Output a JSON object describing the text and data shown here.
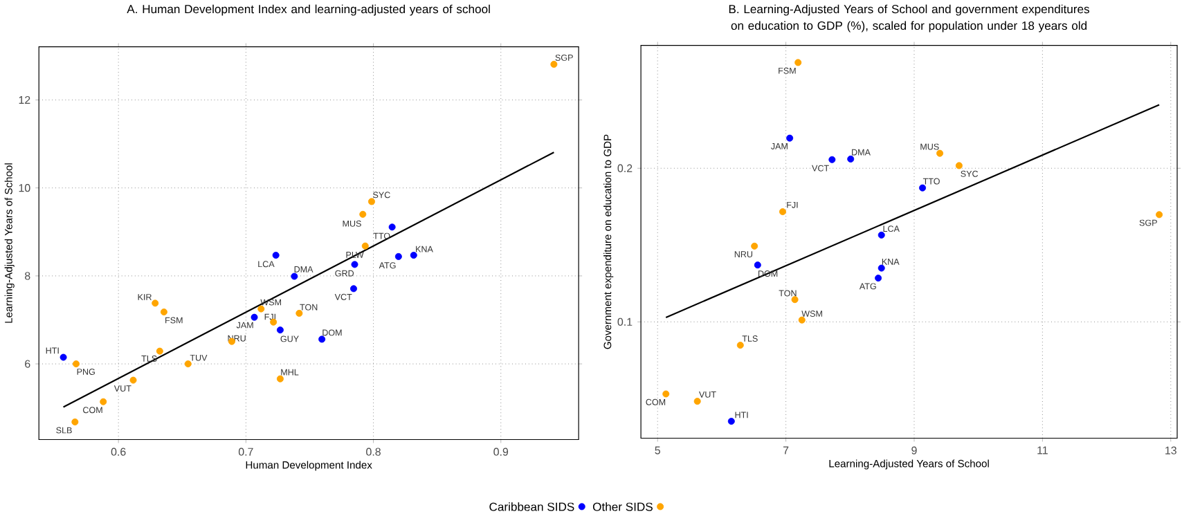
{
  "chart_data": [
    {
      "type": "scatter",
      "title": "A.    Human Development Index and learning-adjusted years of school",
      "xlabel": "Human Development Index",
      "ylabel": "Learning-Adjusted Years of School",
      "xlim": [
        0.5376,
        0.961
      ],
      "ylim": [
        4.28,
        13.21
      ],
      "xticks": [
        0.6,
        0.7,
        0.8,
        0.9
      ],
      "yticks": [
        6,
        8,
        10,
        12
      ],
      "grid": true,
      "legend": "bottom",
      "marker": "circle",
      "series": [
        {
          "name": "Caribbean SIDS",
          "color": "#0000ff",
          "x": [
            0.8147,
            0.7235,
            0.7853,
            0.8197,
            0.8316,
            0.738,
            0.7845,
            0.7066,
            0.7269,
            0.7596,
            0.5568
          ],
          "values": [
            9.11,
            8.47,
            8.26,
            8.44,
            8.47,
            7.99,
            7.71,
            7.06,
            6.77,
            6.56,
            6.15
          ]
        },
        {
          "name": "Other SIDS",
          "color": "#ffa500",
          "x": [
            0.9416,
            0.7986,
            0.7917,
            0.7936,
            0.6288,
            0.6357,
            0.7119,
            0.7418,
            0.7216,
            0.6889,
            0.5668,
            0.6324,
            0.6546,
            0.7269,
            0.6116,
            0.5881,
            0.5659
          ],
          "values": [
            12.81,
            9.69,
            9.4,
            8.68,
            7.38,
            7.18,
            7.25,
            7.15,
            6.95,
            6.51,
            6.0,
            6.29,
            6.0,
            5.66,
            5.63,
            5.14,
            4.68
          ]
        },
        {
          "type": "line",
          "color": "#000000",
          "marker": "none",
          "x": [
            0.5568,
            0.9416
          ],
          "values": [
            5.02,
            10.81
          ]
        }
      ],
      "annotations": [
        {
          "text": "TTO",
          "x": 0.8147,
          "y": 9.11
        },
        {
          "text": "LCA",
          "x": 0.7235,
          "y": 8.47
        },
        {
          "text": "GRD",
          "x": 0.7853,
          "y": 8.26
        },
        {
          "text": "ATG",
          "x": 0.8197,
          "y": 8.44
        },
        {
          "text": "KNA",
          "x": 0.8316,
          "y": 8.47
        },
        {
          "text": "DMA",
          "x": 0.738,
          "y": 7.99
        },
        {
          "text": "VCT",
          "x": 0.7845,
          "y": 7.71
        },
        {
          "text": "JAM",
          "x": 0.7066,
          "y": 7.06
        },
        {
          "text": "GUY",
          "x": 0.7269,
          "y": 6.77
        },
        {
          "text": "DOM",
          "x": 0.7596,
          "y": 6.56
        },
        {
          "text": "HTI",
          "x": 0.5568,
          "y": 6.15
        },
        {
          "text": "SGP",
          "x": 0.9416,
          "y": 12.81
        },
        {
          "text": "SYC",
          "x": 0.7986,
          "y": 9.69
        },
        {
          "text": "MUS",
          "x": 0.7917,
          "y": 9.4
        },
        {
          "text": "PLW",
          "x": 0.7936,
          "y": 8.68
        },
        {
          "text": "KIR",
          "x": 0.6288,
          "y": 7.38
        },
        {
          "text": "FSM",
          "x": 0.6357,
          "y": 7.18
        },
        {
          "text": "WSM",
          "x": 0.7119,
          "y": 7.25
        },
        {
          "text": "TON",
          "x": 0.7418,
          "y": 7.15
        },
        {
          "text": "FJI",
          "x": 0.7216,
          "y": 6.95
        },
        {
          "text": "NRU",
          "x": 0.6889,
          "y": 6.51
        },
        {
          "text": "PNG",
          "x": 0.5668,
          "y": 6.0
        },
        {
          "text": "TLS",
          "x": 0.6324,
          "y": 6.29
        },
        {
          "text": "TUV",
          "x": 0.6546,
          "y": 6.0
        },
        {
          "text": "MHL",
          "x": 0.7269,
          "y": 5.66
        },
        {
          "text": "VUT",
          "x": 0.6116,
          "y": 5.63
        },
        {
          "text": "COM",
          "x": 0.5881,
          "y": 5.14
        },
        {
          "text": "SLB",
          "x": 0.5659,
          "y": 4.68
        }
      ]
    },
    {
      "type": "scatter",
      "title": "B.    Learning-Adjusted Years of School and government expenditures on education to GDP (%), scaled for population under 18 years old",
      "xlabel": "Learning-Adjusted Years of School",
      "ylabel": "Government expenditure on education to GDP",
      "xlim": [
        4.74,
        13.1
      ],
      "ylim": [
        0.0243,
        0.28
      ],
      "xticks": [
        5,
        7,
        9,
        11,
        13
      ],
      "yticks": [
        0.1,
        0.2
      ],
      "grid": true,
      "marker": "circle",
      "series": [
        {
          "color": "#0000ff",
          "x": [
            7.06,
            7.72,
            8.01,
            9.13,
            8.49,
            6.56,
            8.49,
            8.44,
            6.15
          ],
          "values": [
            0.2196,
            0.2056,
            0.206,
            0.1872,
            0.1565,
            0.137,
            0.135,
            0.1285,
            0.0353
          ]
        },
        {
          "color": "#ffa500",
          "x": [
            7.19,
            9.4,
            9.7,
            6.95,
            12.82,
            6.51,
            7.14,
            7.25,
            6.29,
            5.13,
            5.62
          ],
          "values": [
            0.2688,
            0.2097,
            0.2017,
            0.1717,
            0.1698,
            0.1493,
            0.1145,
            0.1012,
            0.0848,
            0.0531,
            0.0483
          ]
        },
        {
          "type": "line",
          "color": "#000000",
          "marker": "none",
          "x": [
            5.13,
            12.82
          ],
          "values": [
            0.1029,
            0.2413
          ]
        }
      ],
      "annotations": [
        {
          "text": "JAM",
          "x": 7.06,
          "y": 0.2196
        },
        {
          "text": "VCT",
          "x": 7.72,
          "y": 0.2056
        },
        {
          "text": "DMA",
          "x": 8.01,
          "y": 0.206
        },
        {
          "text": "TTO",
          "x": 9.13,
          "y": 0.1872
        },
        {
          "text": "LCA",
          "x": 8.49,
          "y": 0.1565
        },
        {
          "text": "DOM",
          "x": 6.56,
          "y": 0.137
        },
        {
          "text": "KNA",
          "x": 8.49,
          "y": 0.135
        },
        {
          "text": "ATG",
          "x": 8.44,
          "y": 0.1285
        },
        {
          "text": "HTI",
          "x": 6.15,
          "y": 0.0353
        },
        {
          "text": "FSM",
          "x": 7.19,
          "y": 0.2688
        },
        {
          "text": "MUS",
          "x": 9.4,
          "y": 0.2097
        },
        {
          "text": "SYC",
          "x": 9.7,
          "y": 0.2017
        },
        {
          "text": "FJI",
          "x": 6.95,
          "y": 0.1717
        },
        {
          "text": "SGP",
          "x": 12.82,
          "y": 0.1698
        },
        {
          "text": "NRU",
          "x": 6.51,
          "y": 0.1493
        },
        {
          "text": "TON",
          "x": 7.14,
          "y": 0.1145
        },
        {
          "text": "WSM",
          "x": 7.25,
          "y": 0.1012
        },
        {
          "text": "TLS",
          "x": 6.29,
          "y": 0.0848
        },
        {
          "text": "COM",
          "x": 5.13,
          "y": 0.0531
        },
        {
          "text": "VUT",
          "x": 5.62,
          "y": 0.0483
        }
      ]
    }
  ]
}
